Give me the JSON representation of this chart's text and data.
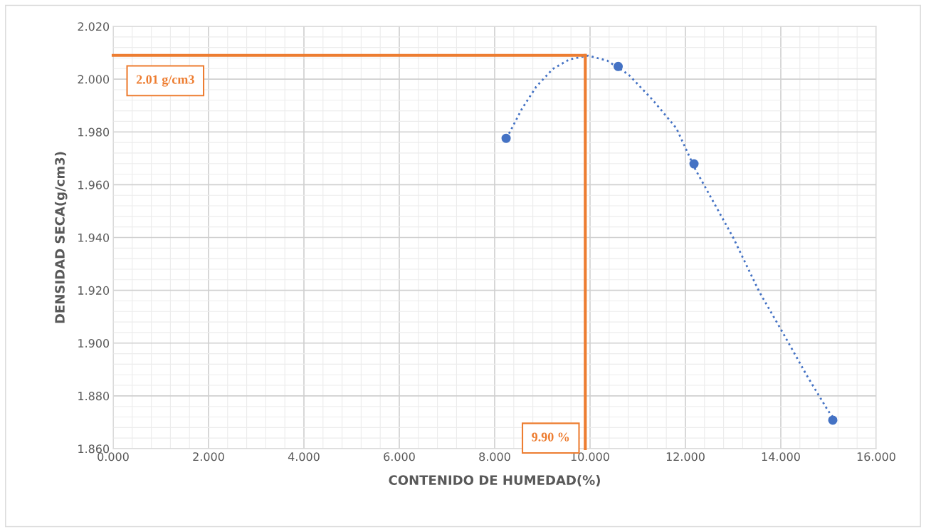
{
  "chart_data": {
    "type": "scatter",
    "xlabel": "CONTENIDO DE HUMEDAD(%)",
    "ylabel": "DENSIDAD SECA(g/cm3)",
    "series": [
      {
        "color": "#4472c4",
        "marker": "circle",
        "x": [
          8.24,
          10.59,
          12.18,
          15.09
        ],
        "values": [
          1.9776,
          2.0048,
          1.9679,
          1.8708
        ]
      },
      {
        "type": "line",
        "color": "#4472c4",
        "line_style": "dotted",
        "marker": "none",
        "x": [
          8.25,
          8.57,
          8.87,
          9.22,
          9.57,
          9.96,
          10.36,
          10.81,
          11.31,
          11.81,
          12.2,
          13.0,
          13.55,
          14.04,
          14.54,
          14.99,
          15.09
        ],
        "values": [
          1.9776,
          1.9887,
          1.9971,
          2.0039,
          2.0075,
          2.0089,
          2.007,
          2.0017,
          1.9922,
          1.9814,
          1.9661,
          1.94,
          1.9194,
          1.904,
          1.8879,
          1.8744,
          1.872
        ]
      }
    ],
    "ref_lines": [
      {
        "axis": "y",
        "value": 2.009,
        "label": "2.01 g/cm3",
        "color": "#ed7d31"
      },
      {
        "axis": "x",
        "value": 9.9,
        "label": "9.90 %",
        "color": "#ed7d31"
      }
    ],
    "xlim": [
      0,
      16
    ],
    "ylim": [
      1.86,
      2.02
    ],
    "xticks": [
      {
        "value": 0,
        "label": "0.000"
      },
      {
        "value": 2,
        "label": "2.000"
      },
      {
        "value": 4,
        "label": "4.000"
      },
      {
        "value": 6,
        "label": "6.000"
      },
      {
        "value": 8,
        "label": "8.000"
      },
      {
        "value": 10,
        "label": "10.000"
      },
      {
        "value": 12,
        "label": "12.000"
      },
      {
        "value": 14,
        "label": "14.000"
      },
      {
        "value": 16,
        "label": "16.000"
      }
    ],
    "yticks": [
      {
        "value": 1.86,
        "label": "1.860"
      },
      {
        "value": 1.88,
        "label": "1.880"
      },
      {
        "value": 1.9,
        "label": "1.900"
      },
      {
        "value": 1.92,
        "label": "1.920"
      },
      {
        "value": 1.94,
        "label": "1.940"
      },
      {
        "value": 1.96,
        "label": "1.960"
      },
      {
        "value": 1.98,
        "label": "1.980"
      },
      {
        "value": 2.0,
        "label": "2.000"
      },
      {
        "value": 2.02,
        "label": "2.020"
      }
    ],
    "grid": true,
    "legend": false
  }
}
